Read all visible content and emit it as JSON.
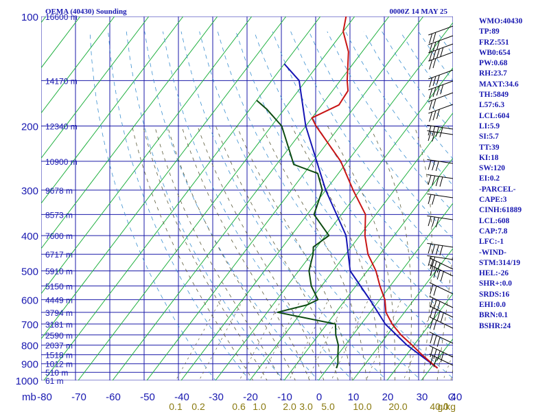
{
  "header": {
    "station": "OEMA (40430) Sounding",
    "valid_time": "0000Z 14 MAY 25"
  },
  "indices": [
    "WMO:40430",
    "TP:89",
    "FRZ:551",
    "WB0:654",
    "PW:0.68",
    "RH:23.7",
    "MAXT:34.6",
    "TH:5849",
    "L57:6.3",
    "LCL:604",
    "LI:5.9",
    "SI:5.7",
    "TT:39",
    "KI:18",
    "SW:120",
    "EI:0.2",
    "-PARCEL-",
    "CAPE:3",
    "CINH:61889",
    "LCL:608",
    "CAP:7.8",
    "LFC:-1",
    "-WIND-",
    "STM:314/19",
    "HEL:-26",
    "SHR+:0.0",
    "SRDS:16",
    "EHI:0.0",
    "BRN:0.1",
    "BSHR:24"
  ],
  "chart_data": {
    "type": "skew-t log-p",
    "title": "OEMA (40430) Sounding",
    "valid": "0000Z 14 MAY 25",
    "pressure_ticks": [
      "100",
      "200",
      "300",
      "400",
      "500",
      "600",
      "700",
      "800",
      "900",
      "1000"
    ],
    "pressure_unit": "mb",
    "temperature_ticks": [
      "-80",
      "-70",
      "-60",
      "-50",
      "-40",
      "-30",
      "-20",
      "-10",
      "0",
      "10",
      "20",
      "30",
      "40"
    ],
    "mixing_ratio_ticks": [
      "0.1",
      "0.2",
      "0.6",
      "1.0",
      "2.0",
      "3.0",
      "5.0",
      "10.0",
      "20.0",
      "40.0"
    ],
    "mixing_ratio_unit": "g/kg",
    "height_labels": [
      {
        "p": 1000,
        "label": "61 m"
      },
      {
        "p": 950,
        "label": "510 m"
      },
      {
        "p": 900,
        "label": "1012 m"
      },
      {
        "p": 850,
        "label": "1518 m"
      },
      {
        "p": 800,
        "label": "2037 m"
      },
      {
        "p": 750,
        "label": "2590 m"
      },
      {
        "p": 700,
        "label": "3181 m"
      },
      {
        "p": 650,
        "label": "3794 m"
      },
      {
        "p": 600,
        "label": "4449 m"
      },
      {
        "p": 550,
        "label": "5150 m"
      },
      {
        "p": 500,
        "label": "5910 m"
      },
      {
        "p": 450,
        "label": "6717 m"
      },
      {
        "p": 400,
        "label": "7600 m"
      },
      {
        "p": 350,
        "label": "8573 m"
      },
      {
        "p": 300,
        "label": "9678 m"
      },
      {
        "p": 250,
        "label": "10900 m"
      },
      {
        "p": 200,
        "label": "12340 m"
      },
      {
        "p": 150,
        "label": "14170 m"
      },
      {
        "p": 100,
        "label": "16600 m"
      }
    ],
    "temperature": [
      [
        925,
        32.0
      ],
      [
        900,
        29.5
      ],
      [
        850,
        24.5
      ],
      [
        800,
        19.5
      ],
      [
        750,
        14.0
      ],
      [
        700,
        9.0
      ],
      [
        650,
        4.6
      ],
      [
        600,
        1.5
      ],
      [
        550,
        -3.0
      ],
      [
        500,
        -7.5
      ],
      [
        450,
        -13.5
      ],
      [
        400,
        -18.5
      ],
      [
        350,
        -23.0
      ],
      [
        300,
        -32.0
      ],
      [
        250,
        -42.0
      ],
      [
        200,
        -57.0
      ],
      [
        190,
        -60.0
      ],
      [
        175,
        -55.0
      ],
      [
        160,
        -55.5
      ],
      [
        150,
        -58.0
      ],
      [
        125,
        -64.0
      ],
      [
        110,
        -70.0
      ],
      [
        100,
        -72.5
      ]
    ],
    "dewpoint": [
      [
        925,
        2.5
      ],
      [
        900,
        2.0
      ],
      [
        850,
        0.0
      ],
      [
        800,
        -2.0
      ],
      [
        750,
        -5.0
      ],
      [
        700,
        -7.5
      ],
      [
        650,
        -27.0
      ],
      [
        620,
        -20.0
      ],
      [
        600,
        -18.0
      ],
      [
        550,
        -23.0
      ],
      [
        500,
        -27.0
      ],
      [
        450,
        -29.5
      ],
      [
        430,
        -31.0
      ],
      [
        400,
        -29.0
      ],
      [
        350,
        -38.0
      ],
      [
        300,
        -41.0
      ],
      [
        270,
        -46.0
      ],
      [
        255,
        -55.0
      ],
      [
        240,
        -58.0
      ],
      [
        200,
        -67.0
      ],
      [
        180,
        -75.0
      ],
      [
        170,
        -80.0
      ]
    ],
    "parcel": [
      [
        925,
        32.0
      ],
      [
        800,
        18.0
      ],
      [
        700,
        7.0
      ],
      [
        608,
        -2.0
      ],
      [
        500,
        -15.0
      ],
      [
        400,
        -24.0
      ],
      [
        300,
        -40.0
      ],
      [
        200,
        -60.0
      ],
      [
        150,
        -72.0
      ],
      [
        135,
        -80.0
      ]
    ]
  }
}
